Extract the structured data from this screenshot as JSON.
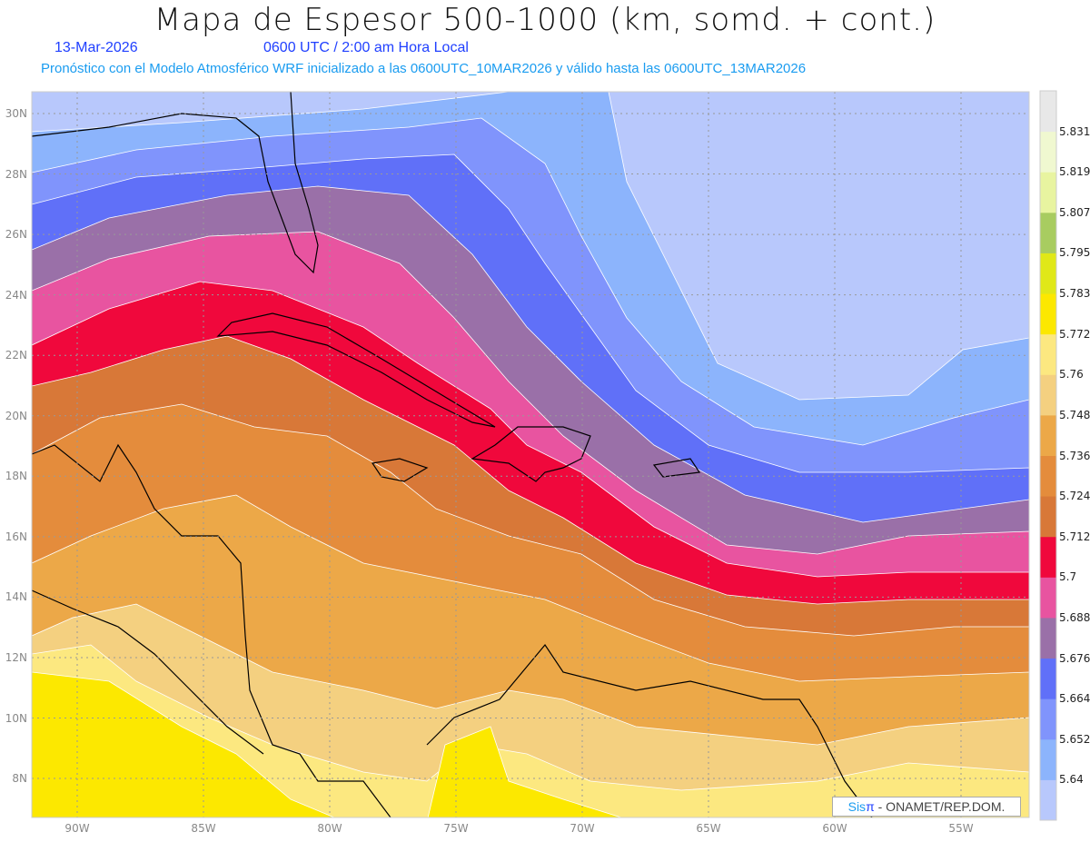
{
  "title": "Mapa de Espesor 500-1000 (km, somd. + cont.)",
  "date": "13-Mar-2026",
  "time": "0600 UTC / 2:00 am Hora Local",
  "forecast_note": "Pronóstico con el Modelo Atmosférico WRF inicializado a las 0600UTC_10MAR2026 y válido hasta las  0600UTC_13MAR2026",
  "lat_labels": [
    "30N",
    "28N",
    "26N",
    "24N",
    "22N",
    "20N",
    "18N",
    "16N",
    "14N",
    "12N",
    "10N",
    "8N"
  ],
  "lon_labels": [
    "90W",
    "85W",
    "80W",
    "75W",
    "70W",
    "65W",
    "60W",
    "55W"
  ],
  "credit": {
    "sis": "Sis",
    "pi": "π",
    "rest": " - ONAMET/REP.DOM."
  },
  "legend": {
    "levels": [
      "5.64",
      "5.652",
      "5.664",
      "5.676",
      "5.688",
      "5.7",
      "5.712",
      "5.724",
      "5.736",
      "5.748",
      "5.76",
      "5.772",
      "5.783",
      "5.795",
      "5.807",
      "5.819",
      "5.831"
    ],
    "colors": [
      "#b8c8fc",
      "#8cb4fc",
      "#8094fc",
      "#6070f8",
      "#9a70a8",
      "#e854a0",
      "#f0083c",
      "#d87838",
      "#e48c3c",
      "#eca848",
      "#f4d080",
      "#fce880",
      "#fce800",
      "#e0e818",
      "#a8cc60",
      "#e8f4a0",
      "#f0f8d0",
      "#e8e8e8"
    ]
  }
}
